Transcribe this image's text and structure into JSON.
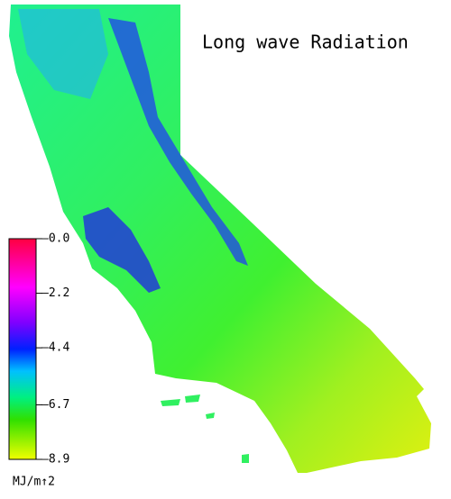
{
  "title": "Long wave Radiation",
  "colorbar": {
    "lim": [
      -8.9,
      0
    ],
    "ticks": [
      {
        "value": 0,
        "label": "–0.0"
      },
      {
        "value": -2.2,
        "label": "–2.2"
      },
      {
        "value": -4.4,
        "label": "–4.4"
      },
      {
        "value": -6.7,
        "label": "–6.7"
      },
      {
        "value": -8.9,
        "label": "–8.9"
      }
    ],
    "unit": "MJ/m↑2"
  }
}
